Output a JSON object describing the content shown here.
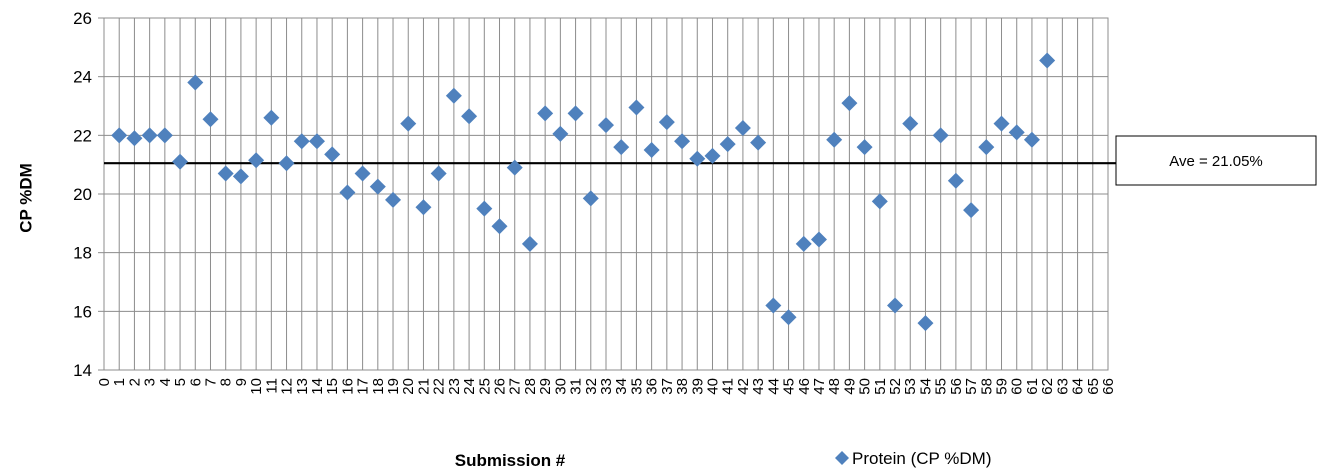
{
  "chart_data": {
    "type": "scatter",
    "xlabel": "Submission #",
    "ylabel": "CP %DM",
    "ylim": [
      14,
      26
    ],
    "y_ticks": [
      "14",
      "16",
      "18",
      "20",
      "22",
      "24",
      "26"
    ],
    "xlim": [
      0,
      66
    ],
    "x_ticks": [
      "0",
      "1",
      "2",
      "3",
      "4",
      "5",
      "6",
      "7",
      "8",
      "9",
      "10",
      "11",
      "12",
      "13",
      "14",
      "15",
      "16",
      "17",
      "18",
      "19",
      "20",
      "21",
      "22",
      "23",
      "24",
      "25",
      "26",
      "27",
      "28",
      "29",
      "30",
      "31",
      "32",
      "33",
      "34",
      "35",
      "36",
      "37",
      "38",
      "39",
      "40",
      "41",
      "42",
      "43",
      "44",
      "45",
      "46",
      "47",
      "48",
      "49",
      "50",
      "51",
      "52",
      "53",
      "54",
      "55",
      "56",
      "57",
      "58",
      "59",
      "60",
      "61",
      "62",
      "63",
      "64",
      "65",
      "66"
    ],
    "grid": true,
    "legend_position": "bottom-right",
    "series": [
      {
        "name": "Protein (CP %DM)",
        "color": "#4F81BD",
        "marker": "diamond",
        "x": [
          1,
          2,
          3,
          4,
          5,
          6,
          7,
          8,
          9,
          10,
          11,
          12,
          13,
          14,
          15,
          16,
          17,
          18,
          19,
          20,
          21,
          22,
          23,
          24,
          25,
          26,
          27,
          28,
          29,
          30,
          31,
          32,
          33,
          34,
          35,
          36,
          37,
          38,
          39,
          40,
          41,
          42,
          43,
          44,
          45,
          46,
          47,
          48,
          49,
          50,
          51,
          52,
          53,
          54,
          55,
          56,
          57,
          58,
          59,
          60,
          61,
          62
        ],
        "y": [
          22.0,
          21.9,
          22.0,
          22.0,
          21.1,
          23.8,
          22.55,
          20.7,
          20.6,
          21.15,
          22.6,
          21.05,
          21.8,
          21.8,
          21.35,
          20.05,
          20.7,
          20.25,
          19.8,
          22.4,
          19.55,
          20.7,
          23.35,
          22.65,
          19.5,
          18.9,
          20.9,
          18.3,
          22.75,
          22.05,
          22.75,
          19.85,
          22.35,
          21.6,
          22.95,
          21.5,
          22.45,
          21.8,
          21.2,
          21.3,
          21.7,
          22.25,
          21.75,
          16.2,
          15.8,
          18.3,
          18.45,
          21.85,
          23.1,
          21.6,
          19.75,
          16.2,
          22.4,
          15.6,
          22.0,
          20.45,
          19.45,
          21.6,
          22.4,
          22.1,
          21.85,
          24.55
        ]
      }
    ],
    "reference_line": {
      "y": 21.05,
      "label": "Ave = 21.05%",
      "color": "#000000"
    }
  }
}
